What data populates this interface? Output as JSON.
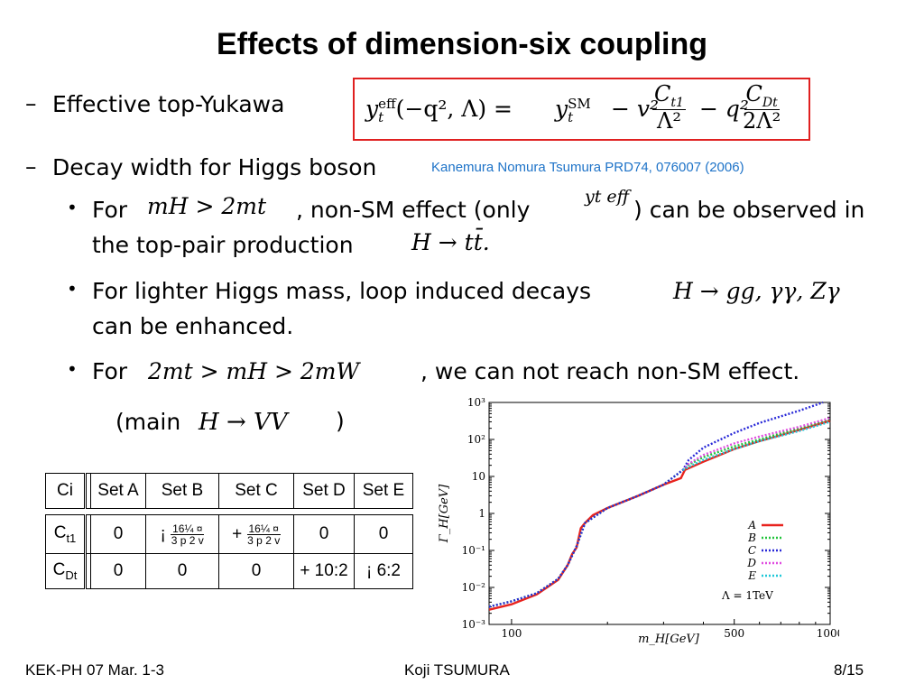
{
  "title": "Effects of dimension-six coupling",
  "bullets": {
    "b1_dash": "–",
    "b1": "Effective top-Yukawa",
    "b2_dash": "–",
    "b2": "Decay width for Higgs boson",
    "b2_ref": "Kanemura Nomura Tsumura PRD74, 076007 (2006)",
    "sub1_dot": "•",
    "sub1_pre": "For",
    "sub1_mid": ", non-SM effect (only",
    "sub1_post": ") can be observed in",
    "sub1_line2": "the top-pair production",
    "sub1_math2": "H → tt̄.",
    "sub2_dot": "•",
    "sub2_line1": "For lighter Higgs mass, loop induced decays",
    "sub2_math": "H → gg, γγ, Zγ",
    "sub2_line2": "can be enhanced.",
    "sub3_dot": "•",
    "sub3_pre": "For",
    "sub3_math": "2mt > mH > 2mW",
    "sub3_post": ", we can not reach non-SM effect.",
    "sub3_line2_pre": "(main",
    "sub3_line2_math": "H → VV",
    "sub3_line2_post": ")",
    "sub1_math1": "mH > 2mt",
    "sub1_math_eff": "yt eff"
  },
  "formula": {
    "lhs": "y",
    "lhs_sup": "eff",
    "lhs_sub": "t",
    "lhs_args": "(−q², Λ) =",
    "term1": "y",
    "term1_sup": "SM",
    "term1_sub": "t",
    "term2": "− v²",
    "frac1_num": "C",
    "frac1_num_sub": "t1",
    "frac1_den": "Λ²",
    "term3": "− q²",
    "frac2_num": "C",
    "frac2_num_sub": "Dt",
    "frac2_den": "2Λ²"
  },
  "table": {
    "header": [
      "Ci",
      "Set  A",
      "Set  B",
      "Set  C",
      "Set  D",
      "Set  E"
    ],
    "header_ci_sub": "i",
    "rows": [
      {
        "label": "C",
        "label_sub": "t1",
        "cells": [
          "0",
          "¡",
          "+",
          "0",
          "0"
        ],
        "b_frac": [
          "16¼ ¤",
          "3 p 2  v"
        ],
        "c_frac": [
          "16¼ ¤",
          "3 p 2  v"
        ]
      },
      {
        "label": "C",
        "label_sub": "Dt",
        "cells": [
          "0",
          "0",
          "0",
          "+ 10:2",
          "¡  6:2"
        ]
      }
    ]
  },
  "chart_data": {
    "type": "line",
    "xlabel": "m_H[GeV]",
    "ylabel": "Γ_H[GeV]",
    "x_ticks": [
      "100",
      "500",
      "1000"
    ],
    "y_ticks": [
      "10³",
      "10²",
      "10",
      "1",
      "10⁻¹",
      "10⁻²",
      "10⁻³"
    ],
    "xscale": "log",
    "yscale": "log",
    "xlim": [
      85,
      1000
    ],
    "ylim": [
      0.001,
      1000
    ],
    "legend_position": "bottom-right",
    "annotation": "Λ = 1TeV",
    "series": [
      {
        "name": "A",
        "color": "#e8231e",
        "style": "solid",
        "x": [
          85,
          100,
          120,
          140,
          150,
          155,
          160,
          165,
          170,
          180,
          200,
          250,
          300,
          340,
          350,
          400,
          500,
          600,
          800,
          1000
        ],
        "y": [
          0.0025,
          0.0035,
          0.0065,
          0.016,
          0.04,
          0.08,
          0.12,
          0.4,
          0.55,
          0.9,
          1.4,
          3.0,
          6.0,
          9.0,
          15,
          25,
          55,
          90,
          180,
          320
        ]
      },
      {
        "name": "B",
        "color": "#21c33a",
        "style": "dotted",
        "x": [
          85,
          100,
          120,
          140,
          150,
          160,
          170,
          200,
          250,
          300,
          345,
          360,
          400,
          500,
          600,
          800,
          1000
        ],
        "y": [
          0.003,
          0.0042,
          0.007,
          0.017,
          0.04,
          0.13,
          0.55,
          1.4,
          3.0,
          6.0,
          15,
          21,
          33,
          65,
          100,
          200,
          360
        ]
      },
      {
        "name": "C",
        "color": "#2a2ad8",
        "style": "dotted",
        "x": [
          85,
          100,
          120,
          140,
          150,
          160,
          170,
          200,
          250,
          300,
          345,
          360,
          400,
          500,
          600,
          800,
          950
        ],
        "y": [
          0.003,
          0.0042,
          0.007,
          0.017,
          0.04,
          0.13,
          0.55,
          1.4,
          3.0,
          6.0,
          15,
          28,
          60,
          150,
          280,
          600,
          1000
        ]
      },
      {
        "name": "D",
        "color": "#e04de0",
        "style": "dotted",
        "x": [
          345,
          360,
          400,
          500,
          600,
          800,
          1000
        ],
        "y": [
          15,
          22,
          38,
          78,
          120,
          220,
          380
        ]
      },
      {
        "name": "E",
        "color": "#20c8d8",
        "style": "dotted",
        "x": [
          345,
          360,
          400,
          500,
          600,
          800,
          1000
        ],
        "y": [
          15,
          18,
          28,
          55,
          90,
          170,
          300
        ]
      }
    ]
  },
  "footer": {
    "left": "KEK-PH 07 Mar. 1-3",
    "middle": "Koji TSUMURA",
    "right": "8/15"
  }
}
